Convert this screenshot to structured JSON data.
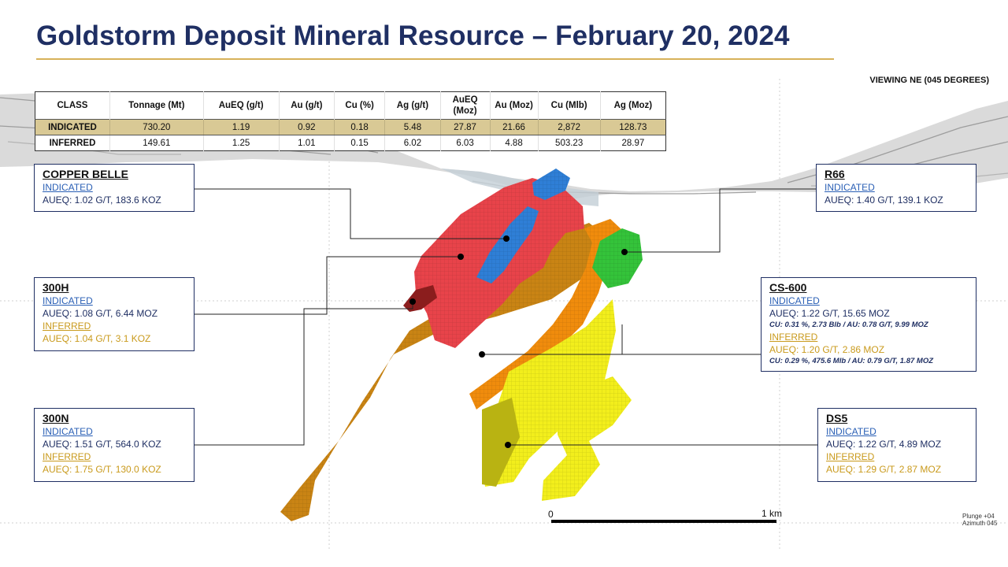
{
  "title": "Goldstorm Deposit Mineral Resource – February 20, 2024",
  "viewing": "VIEWING NE (045 DEGREES)",
  "table": {
    "headers": [
      "CLASS",
      "Tonnage (Mt)",
      "AuEQ  (g/t)",
      "Au (g/t)",
      "Cu (%)",
      "Ag (g/t)",
      "AuEQ (Moz)",
      "Au (Moz)",
      "Cu (Mlb)",
      "Ag (Moz)"
    ],
    "rows": [
      [
        "INDICATED",
        "730.20",
        "1.19",
        "0.92",
        "0.18",
        "5.48",
        "27.87",
        "21.66",
        "2,872",
        "128.73"
      ],
      [
        "INFERRED",
        "149.61",
        "1.25",
        "1.01",
        "0.15",
        "6.02",
        "6.03",
        "4.88",
        "503.23",
        "28.97"
      ]
    ]
  },
  "zones": {
    "copper_belle": {
      "name": "COPPER BELLE",
      "indicated_label": "INDICATED",
      "indicated": "AUEQ: 1.02 G/T, 183.6 KOZ"
    },
    "h300": {
      "name": "300H",
      "indicated_label": "INDICATED",
      "indicated": "AUEQ: 1.08 G/T, 6.44 MOZ",
      "inferred_label": "INFERRED",
      "inferred": "AUEQ: 1.04 G/T, 3.1 KOZ"
    },
    "n300": {
      "name": "300N",
      "indicated_label": "INDICATED",
      "indicated": "AUEQ: 1.51 G/T, 564.0 KOZ",
      "inferred_label": "INFERRED",
      "inferred": "AUEQ: 1.75 G/T, 130.0 KOZ"
    },
    "r66": {
      "name": "R66",
      "indicated_label": "INDICATED",
      "indicated": "AUEQ: 1.40 G/T, 139.1 KOZ"
    },
    "cs600": {
      "name": "CS-600",
      "indicated_label": "INDICATED",
      "indicated": "AUEQ: 1.22 G/T, 15.65 MOZ",
      "indicated_note": "CU: 0.31 %, 2.73 Blb / AU: 0.78 G/T, 9.99 MOZ",
      "inferred_label": "INFERRED",
      "inferred": "AUEQ: 1.20 G/T, 2.86 MOZ",
      "inferred_note": "CU: 0.29 %, 475.6 Mlb / AU: 0.79 G/T, 1.87 MOZ"
    },
    "ds5": {
      "name": "DS5",
      "indicated_label": "INDICATED",
      "indicated": "AUEQ: 1.22 G/T, 4.89 MOZ",
      "inferred_label": "INFERRED",
      "inferred": "AUEQ: 1.29 G/T, 2.87 MOZ"
    }
  },
  "scale": {
    "start": "0",
    "end": "1 km"
  },
  "plunge": "Plunge +04",
  "azimuth": "Azimuth 045",
  "colors": {
    "title": "#1f2f63",
    "title_rule": "#d7b25a",
    "indicated_row": "#d9c995",
    "indicated_text": "#2a5fb5",
    "inferred_text": "#c99a1c",
    "copper_belle_body": "#2f7fd6",
    "h300_body": "#e8434a",
    "n300_body": "#c98414",
    "cs600_body": "#f08c0c",
    "r66_body": "#34c33a",
    "ds5_body": "#f2ee1c"
  }
}
